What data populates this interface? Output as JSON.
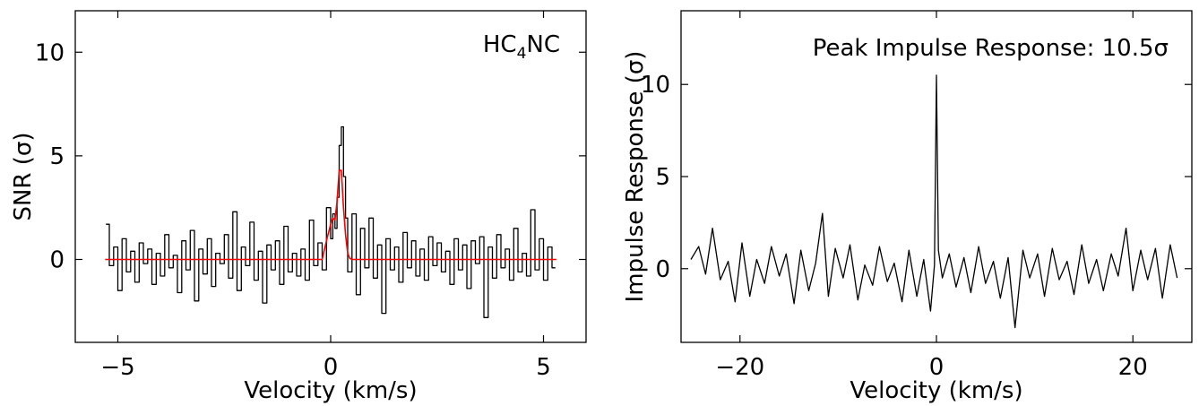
{
  "chart_data": [
    {
      "type": "line",
      "xlabel": "Velocity (km/s)",
      "ylabel": "SNR (σ)",
      "xlim": [
        -6,
        6
      ],
      "ylim": [
        -4,
        12
      ],
      "xticks": [
        -5,
        0,
        5
      ],
      "yticks": [
        0,
        5,
        10
      ],
      "tick_labels_x": [
        "−5",
        "0",
        "5"
      ],
      "tick_labels_y": [
        "0",
        "5",
        "10"
      ],
      "annotation_main": "HC",
      "annotation_sub": "4",
      "annotation_tail": "NC",
      "grid": false,
      "series": [
        {
          "color": "#000000",
          "style": "steps",
          "x": [
            -5.28,
            -5.2,
            -5.1,
            -5.0,
            -4.9,
            -4.8,
            -4.7,
            -4.6,
            -4.5,
            -4.4,
            -4.3,
            -4.2,
            -4.1,
            -4.0,
            -3.9,
            -3.8,
            -3.7,
            -3.6,
            -3.5,
            -3.4,
            -3.3,
            -3.2,
            -3.1,
            -3.0,
            -2.9,
            -2.8,
            -2.7,
            -2.6,
            -2.5,
            -2.4,
            -2.3,
            -2.2,
            -2.1,
            -2.0,
            -1.9,
            -1.8,
            -1.7,
            -1.6,
            -1.5,
            -1.4,
            -1.3,
            -1.2,
            -1.1,
            -1.0,
            -0.9,
            -0.8,
            -0.7,
            -0.6,
            -0.5,
            -0.4,
            -0.3,
            -0.2,
            -0.1,
            0.0,
            0.05,
            0.1,
            0.15,
            0.2,
            0.25,
            0.3,
            0.35,
            0.4,
            0.5,
            0.6,
            0.7,
            0.8,
            0.9,
            1.0,
            1.1,
            1.2,
            1.3,
            1.4,
            1.5,
            1.6,
            1.7,
            1.8,
            1.9,
            2.0,
            2.1,
            2.2,
            2.3,
            2.4,
            2.5,
            2.6,
            2.7,
            2.8,
            2.9,
            3.0,
            3.1,
            3.2,
            3.3,
            3.4,
            3.5,
            3.6,
            3.7,
            3.8,
            3.9,
            4.0,
            4.1,
            4.2,
            4.3,
            4.4,
            4.5,
            4.6,
            4.7,
            4.8,
            4.9,
            5.0,
            5.1,
            5.2
          ],
          "y": [
            1.7,
            -0.3,
            0.6,
            -1.5,
            1.0,
            -0.6,
            0.4,
            -1.1,
            0.8,
            -0.2,
            0.5,
            -1.2,
            0.3,
            -0.8,
            1.2,
            -0.4,
            0.2,
            -1.6,
            0.9,
            -0.5,
            1.4,
            -2.0,
            0.5,
            -0.7,
            1.0,
            -1.3,
            0.3,
            -0.2,
            1.2,
            -0.9,
            2.3,
            -1.5,
            0.6,
            -0.3,
            1.8,
            -1.0,
            0.4,
            -2.1,
            0.7,
            -0.5,
            0.9,
            -1.2,
            1.6,
            -0.6,
            0.3,
            -0.8,
            0.5,
            -1.0,
            1.9,
            -0.3,
            0.8,
            -0.5,
            2.5,
            1.0,
            2.2,
            1.5,
            3.0,
            5.5,
            6.4,
            4.0,
            2.0,
            -0.6,
            2.2,
            -1.7,
            1.5,
            -0.4,
            2.0,
            -0.9,
            0.7,
            -2.6,
            1.0,
            -0.5,
            0.6,
            -1.1,
            1.3,
            -0.4,
            0.9,
            -0.8,
            0.5,
            -1.0,
            1.1,
            -0.3,
            0.8,
            -0.6,
            0.4,
            -1.2,
            1.0,
            -0.5,
            0.7,
            -1.4,
            0.9,
            -0.2,
            1.1,
            -2.8,
            0.6,
            -0.9,
            1.2,
            -0.4,
            0.5,
            -1.0,
            1.5,
            -0.6,
            0.3,
            -0.8,
            2.4,
            -0.5,
            1.0,
            -1.0,
            0.6,
            -0.4
          ]
        },
        {
          "color": "#ff0000",
          "style": "line",
          "x": [
            -5.3,
            -0.2,
            -0.1,
            0.0,
            0.05,
            0.1,
            0.15,
            0.2,
            0.25,
            0.3,
            0.35,
            0.4,
            0.45,
            0.5,
            5.3
          ],
          "y": [
            0.0,
            0.0,
            0.9,
            1.7,
            2.0,
            1.9,
            2.8,
            4.3,
            4.3,
            2.5,
            1.2,
            0.3,
            0.05,
            0.0,
            0.0
          ]
        }
      ]
    },
    {
      "type": "line",
      "xlabel": "Velocity (km/s)",
      "ylabel": "Impulse Response (σ)",
      "xlim": [
        -26,
        26
      ],
      "ylim": [
        -4,
        14
      ],
      "xticks": [
        -20,
        0,
        20
      ],
      "yticks": [
        0,
        5,
        10
      ],
      "tick_labels_x": [
        "−20",
        "0",
        "20"
      ],
      "tick_labels_y": [
        "0",
        "5",
        "10"
      ],
      "annotation": "Peak Impulse Response: 10.5σ",
      "grid": false,
      "series": [
        {
          "color": "#000000",
          "style": "line",
          "x": [
            -25,
            -24.2,
            -23.5,
            -22.8,
            -22.0,
            -21.2,
            -20.5,
            -19.8,
            -19.0,
            -18.3,
            -17.5,
            -16.8,
            -16.0,
            -15.3,
            -14.5,
            -13.8,
            -13.0,
            -12.3,
            -11.6,
            -11.0,
            -10.3,
            -9.5,
            -8.8,
            -8.0,
            -7.3,
            -6.5,
            -5.8,
            -5.0,
            -4.3,
            -3.5,
            -2.8,
            -2.0,
            -1.3,
            -0.6,
            -0.2,
            0.0,
            0.2,
            0.6,
            1.3,
            2.0,
            2.8,
            3.5,
            4.3,
            5.0,
            5.8,
            6.5,
            7.3,
            8.0,
            8.8,
            9.5,
            10.3,
            11.0,
            11.8,
            12.5,
            13.3,
            14.0,
            14.8,
            15.5,
            16.3,
            17.0,
            17.8,
            18.5,
            19.3,
            20.0,
            20.8,
            21.5,
            22.3,
            23.0,
            23.8,
            24.5
          ],
          "y": [
            0.5,
            1.2,
            -0.3,
            2.2,
            -0.6,
            0.4,
            -1.8,
            1.4,
            -1.5,
            0.5,
            -0.8,
            1.2,
            -0.4,
            0.8,
            -1.9,
            1.0,
            -1.2,
            0.3,
            3.0,
            -1.5,
            1.1,
            -0.5,
            1.3,
            -1.7,
            0.2,
            -0.9,
            1.2,
            -0.7,
            0.3,
            -1.8,
            1.0,
            -1.5,
            0.5,
            -2.3,
            0.2,
            10.5,
            1.0,
            -0.5,
            0.8,
            -1.0,
            0.6,
            -1.3,
            1.2,
            -0.8,
            0.4,
            -1.6,
            0.6,
            -3.2,
            1.0,
            -0.5,
            0.8,
            -1.5,
            1.1,
            -0.6,
            0.4,
            -1.4,
            1.3,
            -0.8,
            0.5,
            -1.2,
            0.8,
            -0.4,
            2.2,
            -1.2,
            1.0,
            -0.6,
            1.1,
            -1.6,
            1.3,
            -0.5
          ]
        }
      ]
    }
  ]
}
